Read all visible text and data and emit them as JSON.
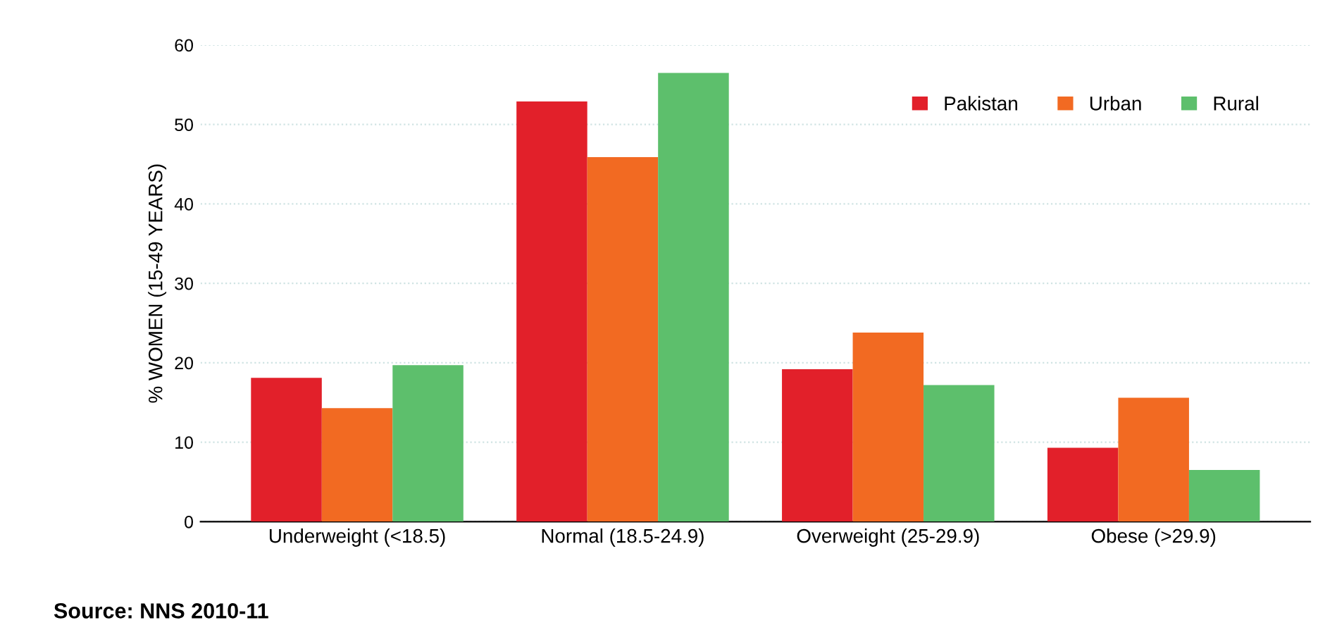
{
  "chart_data": {
    "type": "bar",
    "ylabel": "% WOMEN (15-49 YEARS)",
    "categories": [
      "Underweight (<18.5)",
      "Normal (18.5-24.9)",
      "Overweight (25-29.9)",
      "Obese (>29.9)"
    ],
    "series": [
      {
        "name": "Pakistan",
        "color": "#e2202a",
        "values": [
          18.1,
          52.9,
          19.2,
          9.3
        ]
      },
      {
        "name": "Urban",
        "color": "#f26a22",
        "values": [
          14.3,
          45.9,
          23.8,
          15.6
        ]
      },
      {
        "name": "Rural",
        "color": "#5dbf6c",
        "values": [
          19.7,
          56.5,
          17.2,
          6.5
        ]
      }
    ],
    "ylim": [
      0,
      60
    ],
    "yticks": [
      0,
      10,
      20,
      30,
      40,
      50,
      60
    ],
    "grid": "y",
    "legend": "top right",
    "annotations": [
      "Source: NNS 2010-11"
    ]
  }
}
